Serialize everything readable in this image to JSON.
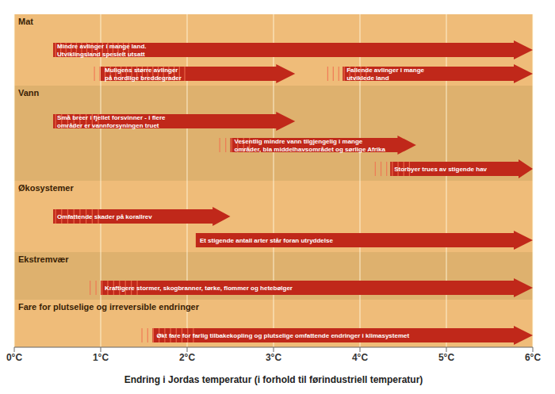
{
  "chart_data": {
    "type": "range_bar",
    "orientation": "horizontal",
    "xlabel": "Endring i Jordas temperatur (i forhold til førindustriell temperatur)",
    "xlim": [
      0,
      6
    ],
    "xticks": [
      {
        "value": 0,
        "label": "0°C"
      },
      {
        "value": 1,
        "label": "1°C"
      },
      {
        "value": 2,
        "label": "2°C"
      },
      {
        "value": 3,
        "label": "3°C"
      },
      {
        "value": 4,
        "label": "4°C"
      },
      {
        "value": 5,
        "label": "5°C"
      },
      {
        "value": 6,
        "label": "6°C"
      }
    ],
    "grid": true,
    "tick_labels": "x",
    "color": "#c0281a",
    "groups": [
      {
        "name": "Mat",
        "color": "#e8a040",
        "rows": [
          [
            {
              "start": 0.45,
              "end": 6.0,
              "label": "Mindre avlinger i mange land.\nUtviklingsland spesielt utsatt",
              "hatch": [
                0.45,
                1.35
              ]
            }
          ],
          [
            {
              "start": 1.0,
              "end": 3.25,
              "label": "Muligens større avlinger\npå nordlige breddegrader",
              "hatch": [
                0.9,
                2.0
              ]
            },
            {
              "start": 3.8,
              "end": 6.0,
              "label": "Fallende avlinger i mange\nutviklede land",
              "hatch": [
                3.6,
                4.1
              ]
            }
          ]
        ]
      },
      {
        "name": "Vann",
        "color": "#d09030",
        "rows": [
          [
            {
              "start": 0.45,
              "end": 3.25,
              "label": "Små breer i fjellet forsvinner - i flere\nområder er vannforsyningen truet",
              "hatch": [
                0.45,
                1.0
              ]
            }
          ],
          [
            {
              "start": 2.5,
              "end": 4.65,
              "label": "Vesentlig mindre vann tilgjengelig i mange\nområder, bla middelhavsområdet og sørlige Afrika",
              "hatch": [
                2.35,
                2.75
              ]
            }
          ],
          [
            {
              "start": 4.35,
              "end": 6.0,
              "label": "Storbyer trues av stigende hav",
              "hatch": [
                4.15,
                4.6
              ]
            }
          ]
        ]
      },
      {
        "name": "Økosystemer",
        "color": "#e8a040",
        "rows": [
          [
            {
              "start": 0.45,
              "end": 2.5,
              "label": "Omfattende skader på korallrev",
              "hatch": [
                0.45,
                1.0
              ]
            }
          ],
          [
            {
              "start": 2.1,
              "end": 6.0,
              "label": "Et stigende antall arter står foran utryddelse"
            }
          ]
        ]
      },
      {
        "name": "Ekstremvær",
        "color": "#d09030",
        "rows": [
          [
            {
              "start": 1.0,
              "end": 6.0,
              "label": "Kraftigere stormer, skogbranner, tørke, flommer og hetebølger",
              "hatch": [
                0.85,
                1.45
              ]
            }
          ]
        ]
      },
      {
        "name": "Fare for plutselige og irreversible endringer",
        "color": "#e8a040",
        "rows": [
          [
            {
              "start": 1.6,
              "end": 6.0,
              "label": "Økt fare for farlig tilbakekopling og plutselige omfattende endringer i klimasystemet",
              "hatch": [
                1.45,
                2.1
              ]
            }
          ]
        ]
      }
    ]
  }
}
